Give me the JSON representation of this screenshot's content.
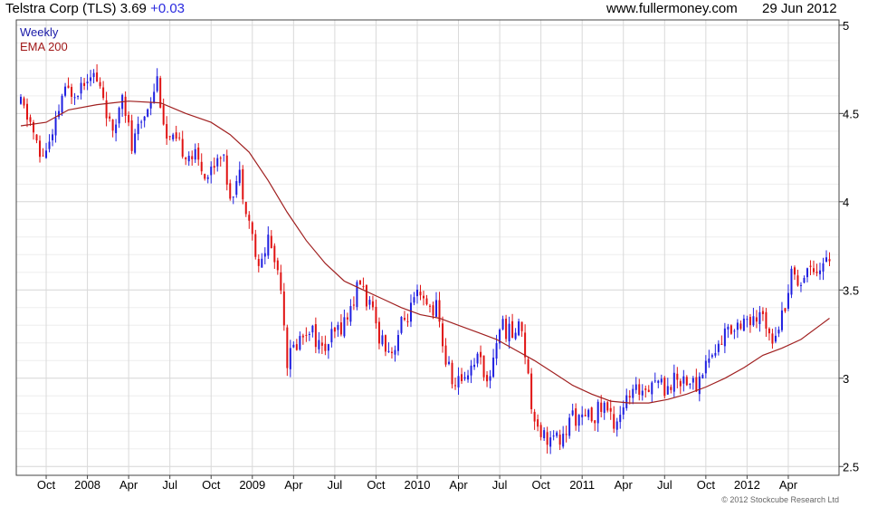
{
  "header": {
    "title": "Telstra Corp (TLS) 3.69",
    "change": "+0.03",
    "website": "www.fullermoney.com",
    "date": "29 Jun 2012"
  },
  "legend": {
    "series_label": "Weekly",
    "ema_label": "EMA 200"
  },
  "copyright": "© 2012 Stockcube Research Ltd",
  "colors": {
    "up": "#1f1fe0",
    "down": "#e01212",
    "ema": "#a02020",
    "grid": "#d9d9d9",
    "frame": "#444444"
  },
  "chart_data": {
    "type": "candlestick",
    "title": "Telstra Corp (TLS)",
    "xlabel": "",
    "ylabel": "",
    "ylim": [
      2.45,
      5.03
    ],
    "y_ticks": [
      2.5,
      3,
      3.5,
      4,
      4.5,
      5
    ],
    "x_ticks": [
      {
        "label": "Oct",
        "week": 8
      },
      {
        "label": "2008",
        "week": 21
      },
      {
        "label": "Apr",
        "week": 34
      },
      {
        "label": "Jul",
        "week": 47
      },
      {
        "label": "Oct",
        "week": 60
      },
      {
        "label": "2009",
        "week": 73
      },
      {
        "label": "Apr",
        "week": 86
      },
      {
        "label": "Jul",
        "week": 99
      },
      {
        "label": "Oct",
        "week": 112
      },
      {
        "label": "2010",
        "week": 125
      },
      {
        "label": "Apr",
        "week": 138
      },
      {
        "label": "Jul",
        "week": 151
      },
      {
        "label": "Oct",
        "week": 164
      },
      {
        "label": "2011",
        "week": 177
      },
      {
        "label": "Apr",
        "week": 190
      },
      {
        "label": "Jul",
        "week": 203
      },
      {
        "label": "Oct",
        "week": 216
      },
      {
        "label": "2012",
        "week": 229
      },
      {
        "label": "Apr",
        "week": 242
      }
    ],
    "x_range": [
      0,
      256
    ],
    "grid": true,
    "legend_position": "top-left",
    "series": [
      {
        "name": "Weekly",
        "style": "candlestick",
        "anchors": [
          [
            0,
            4.55
          ],
          [
            3,
            4.45
          ],
          [
            6,
            4.25
          ],
          [
            10,
            4.35
          ],
          [
            13,
            4.6
          ],
          [
            18,
            4.65
          ],
          [
            22,
            4.75
          ],
          [
            26,
            4.6
          ],
          [
            29,
            4.35
          ],
          [
            32,
            4.65
          ],
          [
            35,
            4.3
          ],
          [
            39,
            4.5
          ],
          [
            43,
            4.7
          ],
          [
            46,
            4.35
          ],
          [
            51,
            4.3
          ],
          [
            55,
            4.25
          ],
          [
            59,
            4.15
          ],
          [
            63,
            4.3
          ],
          [
            66,
            4.05
          ],
          [
            69,
            4.15
          ],
          [
            72,
            3.9
          ],
          [
            75,
            3.6
          ],
          [
            78,
            3.8
          ],
          [
            82,
            3.55
          ],
          [
            84,
            3.1
          ],
          [
            87,
            3.2
          ],
          [
            91,
            3.3
          ],
          [
            95,
            3.15
          ],
          [
            99,
            3.25
          ],
          [
            103,
            3.35
          ],
          [
            107,
            3.55
          ],
          [
            110,
            3.4
          ],
          [
            113,
            3.25
          ],
          [
            117,
            3.15
          ],
          [
            120,
            3.3
          ],
          [
            125,
            3.45
          ],
          [
            128,
            3.4
          ],
          [
            131,
            3.4
          ],
          [
            134,
            3.1
          ],
          [
            137,
            2.95
          ],
          [
            141,
            3.05
          ],
          [
            145,
            3.15
          ],
          [
            147,
            2.95
          ],
          [
            151,
            3.3
          ],
          [
            155,
            3.25
          ],
          [
            158,
            3.3
          ],
          [
            161,
            2.85
          ],
          [
            164,
            2.7
          ],
          [
            167,
            2.65
          ],
          [
            171,
            2.65
          ],
          [
            174,
            2.8
          ],
          [
            177,
            2.75
          ],
          [
            181,
            2.8
          ],
          [
            184,
            2.85
          ],
          [
            187,
            2.75
          ],
          [
            190,
            2.85
          ],
          [
            193,
            2.9
          ],
          [
            196,
            2.95
          ],
          [
            200,
            3.0
          ],
          [
            203,
            2.95
          ],
          [
            207,
            3.0
          ],
          [
            210,
            3.0
          ],
          [
            213,
            2.95
          ],
          [
            216,
            3.1
          ],
          [
            219,
            3.15
          ],
          [
            222,
            3.25
          ],
          [
            225,
            3.3
          ],
          [
            228,
            3.35
          ],
          [
            231,
            3.3
          ],
          [
            234,
            3.35
          ],
          [
            237,
            3.25
          ],
          [
            240,
            3.35
          ],
          [
            243,
            3.6
          ],
          [
            246,
            3.55
          ],
          [
            249,
            3.65
          ],
          [
            252,
            3.62
          ],
          [
            255,
            3.69
          ]
        ]
      },
      {
        "name": "EMA 200",
        "style": "line",
        "points": [
          [
            0,
            4.43
          ],
          [
            8,
            4.45
          ],
          [
            15,
            4.52
          ],
          [
            24,
            4.55
          ],
          [
            34,
            4.57
          ],
          [
            44,
            4.56
          ],
          [
            52,
            4.5
          ],
          [
            60,
            4.45
          ],
          [
            66,
            4.38
          ],
          [
            72,
            4.28
          ],
          [
            78,
            4.12
          ],
          [
            84,
            3.94
          ],
          [
            90,
            3.78
          ],
          [
            96,
            3.65
          ],
          [
            102,
            3.55
          ],
          [
            108,
            3.5
          ],
          [
            114,
            3.45
          ],
          [
            120,
            3.4
          ],
          [
            126,
            3.36
          ],
          [
            132,
            3.34
          ],
          [
            138,
            3.3
          ],
          [
            144,
            3.26
          ],
          [
            150,
            3.22
          ],
          [
            156,
            3.16
          ],
          [
            162,
            3.1
          ],
          [
            168,
            3.03
          ],
          [
            174,
            2.96
          ],
          [
            180,
            2.91
          ],
          [
            186,
            2.87
          ],
          [
            192,
            2.86
          ],
          [
            198,
            2.86
          ],
          [
            204,
            2.88
          ],
          [
            210,
            2.91
          ],
          [
            216,
            2.95
          ],
          [
            222,
            3.0
          ],
          [
            228,
            3.06
          ],
          [
            234,
            3.13
          ],
          [
            240,
            3.17
          ],
          [
            246,
            3.22
          ],
          [
            252,
            3.3
          ],
          [
            255,
            3.34
          ]
        ]
      }
    ]
  }
}
